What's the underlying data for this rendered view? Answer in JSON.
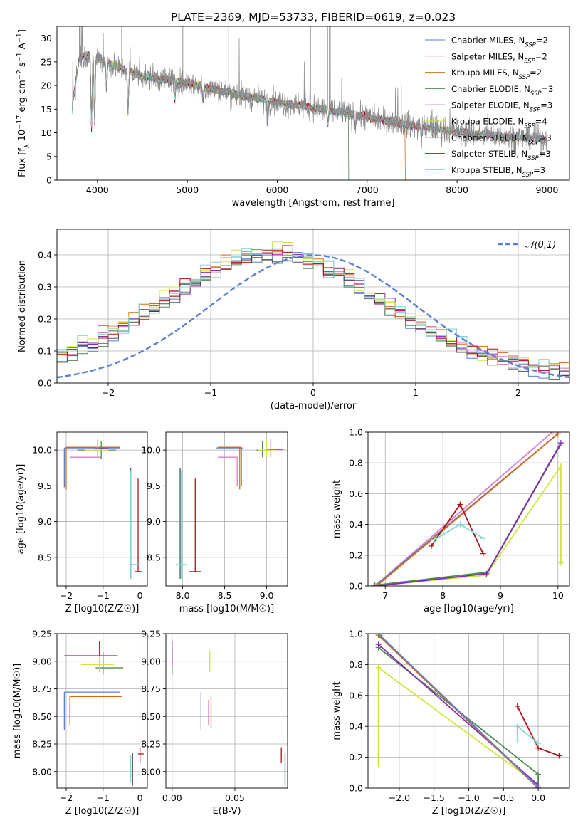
{
  "figure_title": "PLATE=2369, MJD=53733, FIBERID=0619, z=0.023",
  "models": [
    {
      "name": "Chabrier MILES",
      "nssp": "2",
      "color": "#5a7fd3"
    },
    {
      "name": "Salpeter MILES",
      "nssp": "2",
      "color": "#e07cc0"
    },
    {
      "name": "Kroupa MILES",
      "nssp": "2",
      "color": "#d16b1a"
    },
    {
      "name": "Chabrier ELODIE",
      "nssp": "3",
      "color": "#4f8a52"
    },
    {
      "name": "Salpeter ELODIE",
      "nssp": "3",
      "color": "#8a2caf"
    },
    {
      "name": "Kroupa ELODIE",
      "nssp": "4",
      "color": "#d2e340"
    },
    {
      "name": "Chabrier STELIB",
      "nssp": "3",
      "color": "#555555"
    },
    {
      "name": "Salpeter STELIB",
      "nssp": "3",
      "color": "#b0101a"
    },
    {
      "name": "Kroupa STELIB",
      "nssp": "3",
      "color": "#7fd6d6"
    }
  ],
  "chart_data": [
    {
      "id": "spectrum",
      "type": "line",
      "xlabel": "wavelength [Angstrom, rest frame]",
      "ylabel": "Flux [f_λ 10^-17 erg cm^-2 s^-1 A^-1]",
      "xlim": [
        3550,
        9250
      ],
      "ylim": [
        0,
        32.5
      ],
      "xticks": [
        4000,
        5000,
        6000,
        7000,
        8000,
        9000
      ],
      "yticks": [
        0,
        5,
        10,
        15,
        20,
        25,
        30
      ],
      "grid": false,
      "legend": "right",
      "continuum": [
        [
          3720,
          16
        ],
        [
          3800,
          26
        ],
        [
          3900,
          26.5
        ],
        [
          4000,
          26
        ],
        [
          4200,
          24
        ],
        [
          4500,
          22
        ],
        [
          5000,
          20.5
        ],
        [
          5500,
          18.3
        ],
        [
          6000,
          16.5
        ],
        [
          6500,
          15
        ],
        [
          7000,
          13.3
        ],
        [
          7500,
          11.5
        ],
        [
          8000,
          10.2
        ],
        [
          8500,
          9.3
        ],
        [
          9000,
          8.6
        ]
      ],
      "absorption_features": [
        [
          3934,
          16
        ],
        [
          3969,
          14
        ],
        [
          4102,
          6
        ],
        [
          4340,
          9
        ],
        [
          4861,
          4
        ],
        [
          5175,
          3
        ],
        [
          5893,
          5
        ],
        [
          6563,
          3
        ],
        [
          6867,
          2.5
        ],
        [
          7605,
          2
        ]
      ],
      "emission_spikes": [
        [
          3727,
          8
        ],
        [
          3830,
          6
        ],
        [
          4065,
          4
        ],
        [
          4365,
          5
        ],
        [
          4470,
          4
        ],
        [
          4861,
          3
        ],
        [
          5007,
          4
        ],
        [
          5577,
          12
        ],
        [
          5892,
          6
        ],
        [
          6300,
          9
        ],
        [
          6363,
          5
        ],
        [
          6583,
          14
        ],
        [
          6717,
          7
        ],
        [
          7245,
          4
        ],
        [
          7316,
          5
        ],
        [
          7340,
          5
        ],
        [
          7720,
          3
        ],
        [
          7920,
          3
        ],
        [
          8340,
          4
        ],
        [
          8400,
          3
        ],
        [
          8800,
          3
        ]
      ]
    },
    {
      "id": "residuals",
      "type": "histogram",
      "xlabel": "(data-model)/error",
      "ylabel": "Normed distribution",
      "xlim": [
        -2.5,
        2.5
      ],
      "ylim": [
        0,
        0.48
      ],
      "xticks": [
        -2,
        -1,
        0,
        1,
        2
      ],
      "yticks": [
        0.0,
        0.1,
        0.2,
        0.3,
        0.4
      ],
      "grid": true,
      "legend": "top-right",
      "reference_curve": {
        "label": "𝒩(0,1)",
        "mean": 0,
        "sigma": 1,
        "color": "#5a7fd3"
      },
      "bin_width": 0.1,
      "peak_position": -0.4,
      "spread": 1.05
    },
    {
      "id": "age_vs_Z",
      "type": "errorbar",
      "xlabel": "Z [log10(Z/Z☉)]",
      "ylabel": "age  [log10(age/yr)]",
      "xlim": [
        -2.25,
        0.2
      ],
      "ylim": [
        8.1,
        10.25
      ],
      "xticks": [
        -2,
        -1,
        0
      ],
      "yticks": [
        8.5,
        9.0,
        9.5,
        10.0
      ],
      "grid": true,
      "bars": [
        {
          "m": 0,
          "x": [
            -2.05,
            -0.55
          ],
          "y": 10.03
        },
        {
          "m": 0,
          "x": -2.05,
          "y": [
            9.48,
            10.03
          ]
        },
        {
          "m": 1,
          "x": [
            -1.9,
            -1.05
          ],
          "y": 9.9
        },
        {
          "m": 2,
          "x": [
            -2.0,
            -0.55
          ],
          "y": 10.04
        },
        {
          "m": 2,
          "x": -2.0,
          "y": [
            9.45,
            10.04
          ]
        },
        {
          "m": 3,
          "x": [
            -1.7,
            -0.65
          ],
          "y": 10.0
        },
        {
          "m": 3,
          "x": -1.05,
          "y": [
            9.88,
            10.12
          ]
        },
        {
          "m": 4,
          "x": [
            -1.2,
            -0.85
          ],
          "y": 10.02
        },
        {
          "m": 4,
          "x": -1.15,
          "y": [
            9.9,
            10.15
          ]
        },
        {
          "m": 5,
          "x": [
            -1.5,
            -0.85
          ],
          "y": 10.0
        },
        {
          "m": 5,
          "x": -1.15,
          "y": [
            9.9,
            10.15
          ]
        },
        {
          "m": 6,
          "x": -0.25,
          "y": [
            8.2,
            9.75
          ]
        },
        {
          "m": 7,
          "x": -0.05,
          "y": [
            8.3,
            9.6
          ]
        },
        {
          "m": 7,
          "x": [
            -0.15,
            0.05
          ],
          "y": 8.3
        },
        {
          "m": 8,
          "x": -0.25,
          "y": [
            8.2,
            9.72
          ]
        },
        {
          "m": 8,
          "x": [
            -0.3,
            0.0
          ],
          "y": 8.4
        }
      ]
    },
    {
      "id": "age_vs_mass",
      "type": "errorbar",
      "xlabel": "mass [log10(M/M☉)]",
      "ylabel": "",
      "xlim": [
        7.8,
        9.25
      ],
      "ylim": [
        8.1,
        10.25
      ],
      "xticks": [
        8.0,
        8.5,
        9.0
      ],
      "yticks": [
        8.5,
        9.0,
        9.5,
        10.0
      ],
      "grid": true,
      "bars": [
        {
          "m": 0,
          "x": [
            8.4,
            8.72
          ],
          "y": 10.03
        },
        {
          "m": 0,
          "x": 8.7,
          "y": [
            9.5,
            10.03
          ]
        },
        {
          "m": 1,
          "x": [
            8.42,
            8.65
          ],
          "y": 9.9
        },
        {
          "m": 1,
          "x": 8.65,
          "y": [
            9.5,
            9.9
          ]
        },
        {
          "m": 2,
          "x": [
            8.42,
            8.7
          ],
          "y": 10.04
        },
        {
          "m": 2,
          "x": 8.68,
          "y": [
            9.45,
            10.04
          ]
        },
        {
          "m": 3,
          "x": [
            8.88,
            9.05
          ],
          "y": 10.0
        },
        {
          "m": 3,
          "x": 8.95,
          "y": [
            9.9,
            10.12
          ]
        },
        {
          "m": 4,
          "x": [
            9.0,
            9.2
          ],
          "y": 10.01
        },
        {
          "m": 4,
          "x": 9.05,
          "y": [
            9.9,
            10.15
          ]
        },
        {
          "m": 5,
          "x": [
            8.9,
            9.1
          ],
          "y": 10.0
        },
        {
          "m": 5,
          "x": 9.0,
          "y": [
            9.9,
            10.15
          ]
        },
        {
          "m": 6,
          "x": 7.97,
          "y": [
            8.2,
            9.75
          ]
        },
        {
          "m": 7,
          "x": 8.15,
          "y": [
            8.3,
            9.6
          ]
        },
        {
          "m": 7,
          "x": [
            8.08,
            8.22
          ],
          "y": 8.3
        },
        {
          "m": 8,
          "x": 7.98,
          "y": [
            8.2,
            9.72
          ]
        },
        {
          "m": 8,
          "x": [
            7.92,
            8.05
          ],
          "y": 8.4
        }
      ]
    },
    {
      "id": "weight_vs_age",
      "type": "line",
      "xlabel": "age  [log10(age/yr)]",
      "ylabel": "mass weight",
      "xlim": [
        6.7,
        10.2
      ],
      "ylim": [
        0.0,
        1.0
      ],
      "xticks": [
        7,
        8,
        9,
        10
      ],
      "yticks": [
        0.0,
        0.2,
        0.4,
        0.6,
        0.8,
        1.0
      ],
      "grid": true,
      "lines": [
        {
          "m": 5,
          "pts": [
            [
              6.8,
              0.0
            ],
            [
              8.75,
              0.07
            ],
            [
              10.05,
              0.78
            ],
            [
              10.05,
              0.15
            ]
          ]
        },
        {
          "m": 3,
          "pts": [
            [
              6.82,
              0.005
            ],
            [
              8.78,
              0.09
            ],
            [
              10.03,
              0.91
            ]
          ]
        },
        {
          "m": 4,
          "pts": [
            [
              6.85,
              0.0
            ],
            [
              8.76,
              0.08
            ],
            [
              10.05,
              0.93
            ]
          ]
        },
        {
          "m": 1,
          "pts": [
            [
              6.82,
              0.0
            ],
            [
              9.9,
              1.0
            ]
          ]
        },
        {
          "m": 0,
          "pts": [
            [
              6.82,
              0.0
            ],
            [
              10.0,
              0.99
            ]
          ]
        },
        {
          "m": 2,
          "pts": [
            [
              6.85,
              0.0
            ],
            [
              10.0,
              0.99
            ]
          ]
        },
        {
          "m": 7,
          "pts": [
            [
              7.8,
              0.26
            ],
            [
              8.3,
              0.53
            ],
            [
              8.7,
              0.21
            ]
          ]
        },
        {
          "m": 8,
          "pts": [
            [
              7.85,
              0.3
            ],
            [
              8.3,
              0.4
            ],
            [
              8.7,
              0.31
            ]
          ]
        }
      ]
    },
    {
      "id": "mass_vs_Z",
      "type": "errorbar",
      "xlabel": "Z [log10(Z/Z☉)]",
      "ylabel": "mass [log10(M/M☉)]",
      "xlim": [
        -2.25,
        0.2
      ],
      "ylim": [
        7.85,
        9.25
      ],
      "xticks": [
        -2,
        -1,
        0
      ],
      "yticks": [
        8.0,
        8.25,
        8.5,
        8.75,
        9.0,
        9.25
      ],
      "grid": true,
      "bars": [
        {
          "m": 0,
          "x": [
            -2.05,
            -0.55
          ],
          "y": 8.72
        },
        {
          "m": 0,
          "x": -2.05,
          "y": [
            8.38,
            8.72
          ]
        },
        {
          "m": 2,
          "x": [
            -1.9,
            -0.48
          ],
          "y": 8.68
        },
        {
          "m": 2,
          "x": -1.9,
          "y": [
            8.42,
            8.68
          ]
        },
        {
          "m": 3,
          "x": [
            -1.2,
            -0.45
          ],
          "y": 8.94
        },
        {
          "m": 3,
          "x": -1.0,
          "y": [
            8.88,
            9.08
          ]
        },
        {
          "m": 4,
          "x": [
            -2.05,
            -0.6
          ],
          "y": 9.05
        },
        {
          "m": 4,
          "x": -1.1,
          "y": [
            8.95,
            9.18
          ]
        },
        {
          "m": 5,
          "x": [
            -1.6,
            -0.7
          ],
          "y": 8.97
        },
        {
          "m": 5,
          "x": -1.1,
          "y": [
            8.9,
            9.05
          ]
        },
        {
          "m": 6,
          "x": -0.2,
          "y": [
            7.87,
            8.17
          ]
        },
        {
          "m": 7,
          "x": [
            -0.05,
            0.1
          ],
          "y": 8.16
        },
        {
          "m": 7,
          "x": 0.0,
          "y": [
            8.08,
            8.22
          ]
        },
        {
          "m": 8,
          "x": [
            -0.3,
            0.05
          ],
          "y": 7.97
        },
        {
          "m": 8,
          "x": -0.25,
          "y": [
            7.9,
            8.15
          ]
        }
      ]
    },
    {
      "id": "mass_vs_ebv",
      "type": "errorbar",
      "xlabel": "E(B-V)",
      "ylabel": "",
      "xlim": [
        -0.005,
        0.092
      ],
      "ylim": [
        7.85,
        9.25
      ],
      "xticks": [
        0.0,
        0.05
      ],
      "yticks": [
        8.0,
        8.25,
        8.5,
        8.75,
        9.0,
        9.25
      ],
      "grid": true,
      "bars": [
        {
          "m": 0,
          "x": 0.023,
          "y": [
            8.38,
            8.72
          ]
        },
        {
          "m": 1,
          "x": 0.029,
          "y": [
            8.42,
            8.65
          ]
        },
        {
          "m": 2,
          "x": 0.031,
          "y": [
            8.4,
            8.68
          ]
        },
        {
          "m": 3,
          "x": 0.0,
          "y": [
            8.88,
            9.08
          ]
        },
        {
          "m": 4,
          "x": 0.0,
          "y": [
            8.95,
            9.18
          ]
        },
        {
          "m": 5,
          "x": 0.03,
          "y": [
            8.9,
            9.1
          ]
        },
        {
          "m": 6,
          "x": 0.09,
          "y": [
            7.87,
            8.17
          ]
        },
        {
          "m": 7,
          "x": 0.087,
          "y": [
            8.08,
            8.22
          ]
        },
        {
          "m": 8,
          "x": 0.09,
          "y": [
            7.9,
            8.15
          ]
        }
      ]
    },
    {
      "id": "weight_vs_Z",
      "type": "line",
      "xlabel": "Z [log10(Z/Z☉)]",
      "ylabel": "mass weight",
      "xlim": [
        -2.45,
        0.45
      ],
      "ylim": [
        0.0,
        1.0
      ],
      "xticks": [
        -2.0,
        -1.5,
        -1.0,
        -0.5,
        0.0
      ],
      "yticks": [
        0.0,
        0.2,
        0.4,
        0.6,
        0.8,
        1.0
      ],
      "grid": true,
      "lines": [
        {
          "m": 5,
          "pts": [
            [
              -2.3,
              0.15
            ],
            [
              -2.3,
              0.78
            ],
            [
              0.0,
              0.02
            ]
          ]
        },
        {
          "m": 3,
          "pts": [
            [
              -2.3,
              0.91
            ],
            [
              0.0,
              0.09
            ],
            [
              0.0,
              0.0
            ]
          ]
        },
        {
          "m": 4,
          "pts": [
            [
              -2.3,
              0.93
            ],
            [
              0.0,
              0.02
            ]
          ]
        },
        {
          "m": 2,
          "pts": [
            [
              -2.3,
              0.99
            ],
            [
              0.0,
              0.0
            ]
          ]
        },
        {
          "m": 0,
          "pts": [
            [
              -2.28,
              0.99
            ],
            [
              0.0,
              0.005
            ]
          ]
        },
        {
          "m": 7,
          "pts": [
            [
              -0.3,
              0.53
            ],
            [
              0.0,
              0.26
            ],
            [
              0.3,
              0.21
            ]
          ]
        },
        {
          "m": 8,
          "pts": [
            [
              -0.3,
              0.31
            ],
            [
              -0.3,
              0.4
            ],
            [
              0.0,
              0.29
            ]
          ]
        }
      ]
    }
  ],
  "tick_label_format": {
    "minus": "−"
  }
}
